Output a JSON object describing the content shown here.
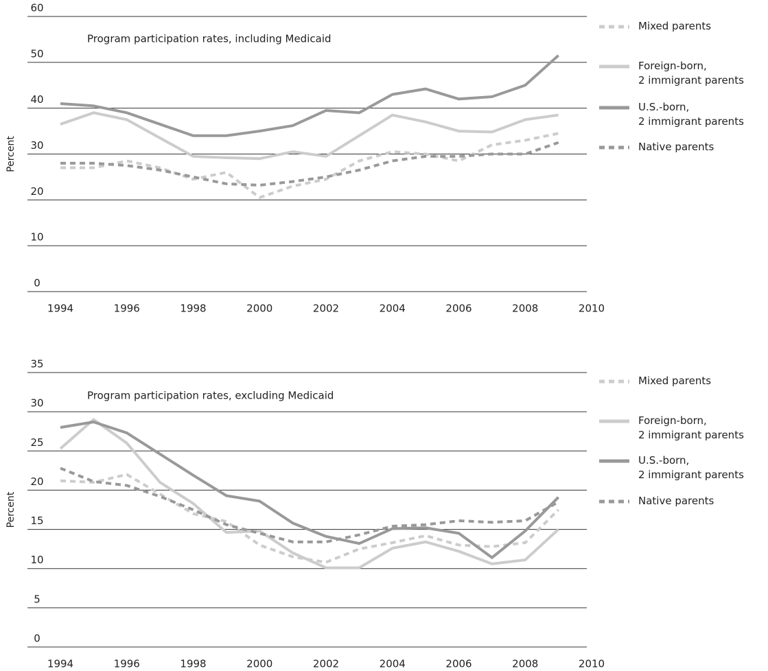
{
  "chart_data": [
    {
      "type": "line",
      "title": "Program participation rates, including Medicaid",
      "ylabel": "Percent",
      "x": [
        1994,
        1995,
        1996,
        1997,
        1998,
        1999,
        2000,
        2001,
        2002,
        2003,
        2004,
        2005,
        2006,
        2007,
        2008,
        2009
      ],
      "xlim": [
        1994,
        2010
      ],
      "xticks": [
        1994,
        1996,
        1998,
        2000,
        2002,
        2004,
        2006,
        2008,
        2010
      ],
      "ylim": [
        0,
        60
      ],
      "yticks": [
        0,
        10,
        20,
        30,
        40,
        50,
        60
      ],
      "grid": true,
      "series": [
        {
          "name": "Mixed parents",
          "color": "#cccccc",
          "linestyle": "dashed",
          "values": [
            27,
            27,
            28.5,
            27,
            24.5,
            26,
            20.5,
            23,
            24.5,
            28.5,
            30.5,
            30,
            28.5,
            32,
            33,
            34.5
          ]
        },
        {
          "name": "Foreign-born,\n2 immigrant parents",
          "color": "#cccccc",
          "linestyle": "solid",
          "values": [
            36.5,
            39,
            37.5,
            33.5,
            29.5,
            29.2,
            29,
            30.5,
            29.5,
            34,
            38.5,
            37,
            35,
            34.8,
            37.5,
            38.5
          ]
        },
        {
          "name": "U.S.-born,\n2 immigrant parents",
          "color": "#999999",
          "linestyle": "solid",
          "values": [
            41,
            40.5,
            39,
            36.5,
            34,
            34,
            35,
            36.2,
            39.5,
            39,
            43,
            44.2,
            42,
            42.5,
            45,
            51.5
          ]
        },
        {
          "name": "Native parents",
          "color": "#999999",
          "linestyle": "dashed",
          "values": [
            28,
            28,
            27.5,
            26.5,
            25,
            23.5,
            23.2,
            24,
            25,
            26.5,
            28.5,
            29.5,
            29.5,
            30,
            30,
            32.5
          ]
        }
      ]
    },
    {
      "type": "line",
      "title": "Program participation rates, excluding Medicaid",
      "ylabel": "Percent",
      "x": [
        1994,
        1995,
        1996,
        1997,
        1998,
        1999,
        2000,
        2001,
        2002,
        2003,
        2004,
        2005,
        2006,
        2007,
        2008,
        2009
      ],
      "xlim": [
        1994,
        2010
      ],
      "xticks": [
        1994,
        1996,
        1998,
        2000,
        2002,
        2004,
        2006,
        2008,
        2010
      ],
      "ylim": [
        0,
        35
      ],
      "yticks": [
        0,
        5,
        10,
        15,
        20,
        25,
        30,
        35
      ],
      "grid": true,
      "series": [
        {
          "name": "Mixed parents",
          "color": "#cccccc",
          "linestyle": "dashed",
          "values": [
            21.2,
            21,
            22,
            19.5,
            17,
            16,
            13,
            11.5,
            10.8,
            12.5,
            13.3,
            14.2,
            13,
            12.8,
            13.3,
            17.5
          ]
        },
        {
          "name": "Foreign-born,\n2 immigrant parents",
          "color": "#cccccc",
          "linestyle": "solid",
          "values": [
            25.3,
            29,
            26,
            21,
            18.3,
            14.6,
            14.8,
            12,
            10.1,
            10.1,
            12.6,
            13.4,
            12.2,
            10.6,
            11.1,
            15
          ]
        },
        {
          "name": "U.S.-born,\n2 immigrant parents",
          "color": "#999999",
          "linestyle": "solid",
          "values": [
            28,
            28.7,
            27.3,
            24.6,
            21.9,
            19.3,
            18.6,
            15.8,
            14.1,
            13.2,
            15.1,
            15.2,
            14.5,
            11.4,
            14.8,
            19.1
          ]
        },
        {
          "name": "Native parents",
          "color": "#999999",
          "linestyle": "dashed",
          "values": [
            22.8,
            21.1,
            20.6,
            19.2,
            17.5,
            15.6,
            14.5,
            13.4,
            13.4,
            14.3,
            15.4,
            15.6,
            16.1,
            15.9,
            16.1,
            18.5
          ]
        }
      ]
    }
  ]
}
